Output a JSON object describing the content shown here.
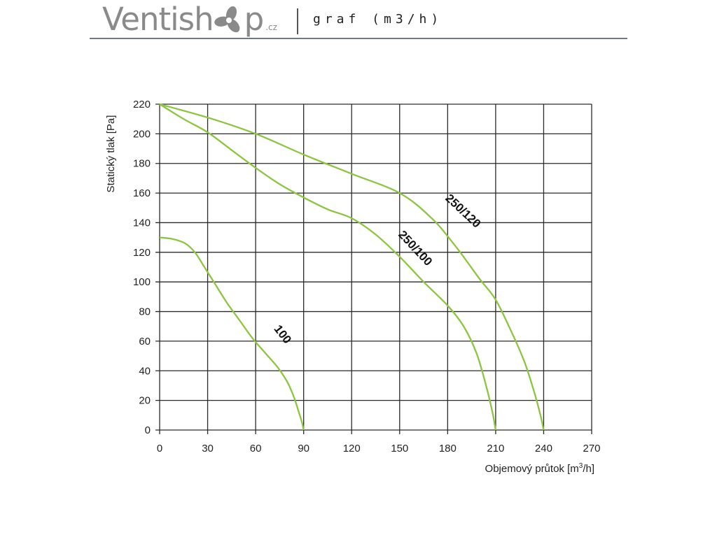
{
  "header": {
    "brand_prefix": "Ventish",
    "brand_suffix": "p",
    "brand_tld": ".cz",
    "subtitle": "graf (m3/h)"
  },
  "chart_data": {
    "type": "line",
    "xlabel": "Objemový průtok [m3/h]",
    "ylabel": "Statický tlak [Pa]",
    "xlim": [
      0,
      270
    ],
    "ylim": [
      0,
      220
    ],
    "xticks": [
      0,
      30,
      60,
      90,
      120,
      150,
      180,
      210,
      240,
      270
    ],
    "yticks": [
      0,
      20,
      40,
      60,
      80,
      100,
      120,
      140,
      160,
      180,
      200,
      220
    ],
    "grid": true,
    "line_color": "#8cc63f",
    "series": [
      {
        "name": "100",
        "x": [
          0,
          8,
          16,
          22,
          28,
          35,
          42,
          50,
          58,
          66,
          74,
          80,
          84,
          87,
          89,
          90
        ],
        "y": [
          130,
          129,
          126,
          120,
          110,
          98,
          86,
          74,
          62,
          52,
          42,
          32,
          22,
          12,
          5,
          0
        ]
      },
      {
        "name": "250/100",
        "x": [
          0,
          15,
          30,
          45,
          60,
          75,
          90,
          105,
          120,
          135,
          150,
          165,
          180,
          190,
          198,
          204,
          208,
          210
        ],
        "y": [
          220,
          210,
          201,
          189,
          177,
          166,
          157,
          149,
          143,
          132,
          117,
          100,
          84,
          70,
          52,
          30,
          12,
          0
        ]
      },
      {
        "name": "250/120",
        "x": [
          0,
          30,
          60,
          90,
          120,
          150,
          170,
          185,
          200,
          210,
          220,
          228,
          234,
          238,
          240
        ],
        "y": [
          220,
          211,
          200,
          186,
          173,
          160,
          143,
          124,
          102,
          88,
          66,
          46,
          26,
          10,
          0
        ]
      }
    ]
  }
}
